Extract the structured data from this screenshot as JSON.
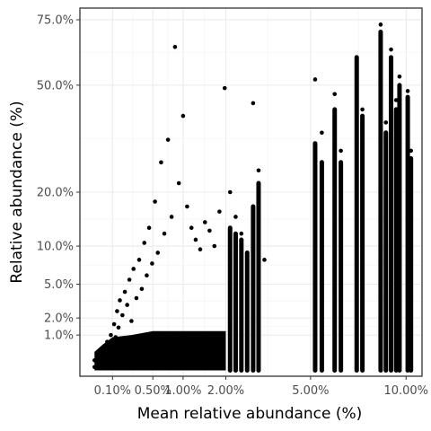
{
  "chart_data": {
    "type": "scatter",
    "xlabel": "Mean relative abundance (%)",
    "ylabel": "Relative abundance (%)",
    "x_scale": "sqrt",
    "y_scale": "sqrt",
    "xlim": [
      0.0,
      11.0
    ],
    "ylim": [
      0.0,
      80.0
    ],
    "x_ticks": [
      {
        "value": 0.1,
        "label": "0.10%"
      },
      {
        "value": 0.5,
        "label": "0.50%"
      },
      {
        "value": 1.0,
        "label": "1.00%"
      },
      {
        "value": 2.0,
        "label": "2.00%"
      },
      {
        "value": 5.0,
        "label": "5.00%"
      },
      {
        "value": 10.0,
        "label": "10.00%"
      }
    ],
    "y_ticks": [
      {
        "value": 1.0,
        "label": "1.0%"
      },
      {
        "value": 2.0,
        "label": "2.0%"
      },
      {
        "value": 5.0,
        "label": "5.0%"
      },
      {
        "value": 10.0,
        "label": "10.0%"
      },
      {
        "value": 20.0,
        "label": "20.0%"
      },
      {
        "value": 50.0,
        "label": "50.0%"
      },
      {
        "value": 75.0,
        "label": "75.0%"
      }
    ],
    "grid": true,
    "point_color": "#000000",
    "points_note": "",
    "points": [
      [
        0.02,
        0.05
      ],
      [
        0.02,
        0.15
      ],
      [
        0.03,
        0.3
      ],
      [
        0.04,
        0.1
      ],
      [
        0.05,
        0.4
      ],
      [
        0.06,
        0.2
      ],
      [
        0.07,
        0.7
      ],
      [
        0.08,
        0.3
      ],
      [
        0.09,
        1.0
      ],
      [
        0.1,
        0.6
      ],
      [
        0.11,
        1.6
      ],
      [
        0.12,
        0.9
      ],
      [
        0.13,
        2.5
      ],
      [
        0.14,
        1.4
      ],
      [
        0.15,
        3.4
      ],
      [
        0.17,
        2.2
      ],
      [
        0.19,
        4.2
      ],
      [
        0.21,
        3.0
      ],
      [
        0.23,
        5.5
      ],
      [
        0.25,
        1.8
      ],
      [
        0.27,
        6.8
      ],
      [
        0.3,
        3.6
      ],
      [
        0.33,
        8.0
      ],
      [
        0.36,
        4.5
      ],
      [
        0.39,
        10.5
      ],
      [
        0.42,
        6.0
      ],
      [
        0.45,
        13.0
      ],
      [
        0.49,
        7.5
      ],
      [
        0.53,
        18.0
      ],
      [
        0.57,
        9.0
      ],
      [
        0.62,
        27.0
      ],
      [
        0.67,
        12.0
      ],
      [
        0.73,
        33.0
      ],
      [
        0.79,
        15.0
      ],
      [
        0.85,
        64.0
      ],
      [
        0.92,
        22.0
      ],
      [
        1.0,
        40.0
      ],
      [
        1.08,
        17.0
      ],
      [
        1.17,
        13.0
      ],
      [
        1.26,
        11.0
      ],
      [
        1.36,
        9.5
      ],
      [
        1.47,
        14.0
      ],
      [
        1.58,
        12.5
      ],
      [
        1.7,
        10.0
      ],
      [
        1.83,
        16.0
      ],
      [
        1.97,
        49.0
      ],
      [
        2.12,
        20.0
      ],
      [
        2.28,
        15.0
      ],
      [
        2.45,
        12.0
      ],
      [
        2.63,
        9.0
      ],
      [
        2.82,
        44.0
      ],
      [
        3.0,
        25.0
      ],
      [
        3.2,
        8.0
      ],
      [
        5.2,
        52.0
      ],
      [
        5.5,
        35.0
      ],
      [
        6.1,
        47.0
      ],
      [
        6.4,
        30.0
      ],
      [
        7.2,
        60.0
      ],
      [
        7.5,
        42.0
      ],
      [
        8.5,
        73.0
      ],
      [
        8.8,
        38.0
      ],
      [
        9.1,
        63.0
      ],
      [
        9.4,
        45.0
      ],
      [
        9.6,
        53.0
      ],
      [
        10.1,
        48.0
      ],
      [
        10.3,
        30.0
      ]
    ],
    "columns": [
      {
        "x": 2.12,
        "y_min": 0.02,
        "y_max": 13.0
      },
      {
        "x": 2.28,
        "y_min": 0.02,
        "y_max": 12.0
      },
      {
        "x": 2.45,
        "y_min": 0.02,
        "y_max": 11.0
      },
      {
        "x": 2.63,
        "y_min": 0.02,
        "y_max": 9.0
      },
      {
        "x": 2.82,
        "y_min": 0.02,
        "y_max": 17.0
      },
      {
        "x": 3.0,
        "y_min": 0.02,
        "y_max": 22.0
      },
      {
        "x": 5.2,
        "y_min": 0.02,
        "y_max": 32.0
      },
      {
        "x": 5.5,
        "y_min": 0.02,
        "y_max": 27.0
      },
      {
        "x": 6.1,
        "y_min": 0.02,
        "y_max": 42.0
      },
      {
        "x": 6.4,
        "y_min": 0.02,
        "y_max": 27.0
      },
      {
        "x": 7.2,
        "y_min": 0.02,
        "y_max": 60.0
      },
      {
        "x": 7.5,
        "y_min": 0.02,
        "y_max": 40.0
      },
      {
        "x": 8.5,
        "y_min": 0.02,
        "y_max": 70.0
      },
      {
        "x": 8.8,
        "y_min": 0.02,
        "y_max": 35.0
      },
      {
        "x": 9.1,
        "y_min": 0.02,
        "y_max": 60.0
      },
      {
        "x": 9.4,
        "y_min": 0.02,
        "y_max": 42.0
      },
      {
        "x": 9.6,
        "y_min": 0.02,
        "y_max": 50.0
      },
      {
        "x": 10.1,
        "y_min": 0.02,
        "y_max": 46.0
      },
      {
        "x": 10.3,
        "y_min": 0.02,
        "y_max": 28.0
      }
    ],
    "dense_region": {
      "x_min": 0.02,
      "x_max": 2.0,
      "y_min": 0.02,
      "y_max": 1.2
    }
  }
}
